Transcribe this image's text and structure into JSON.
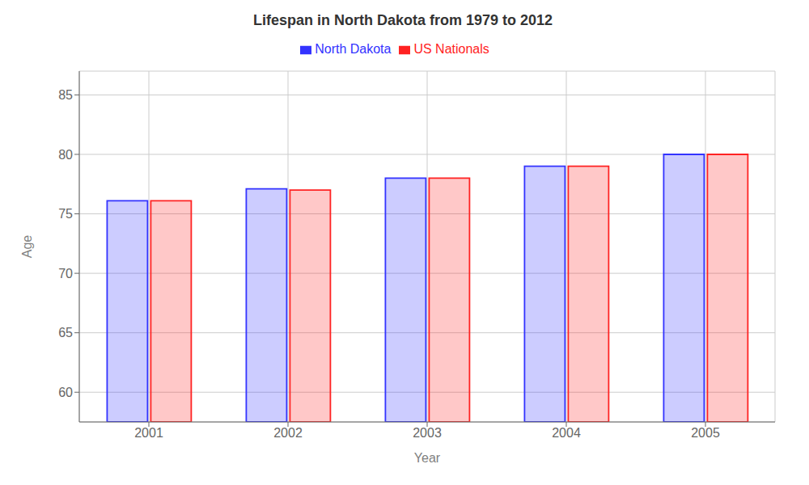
{
  "chart_data": {
    "type": "bar",
    "title": "Lifespan in North Dakota from 1979 to 2012",
    "x_label": "Year",
    "y_label": "Age",
    "categories": [
      "2001",
      "2002",
      "2003",
      "2004",
      "2005"
    ],
    "series": [
      {
        "name": "North Dakota",
        "color": "#3333ff",
        "values": [
          76.1,
          77.1,
          78.0,
          79.0,
          80.0
        ]
      },
      {
        "name": "US Nationals",
        "color": "#ff2222",
        "values": [
          76.1,
          77.0,
          78.0,
          79.0,
          80.0
        ]
      }
    ],
    "ylim": [
      57.5,
      87
    ],
    "yticks": [
      60,
      65,
      70,
      75,
      80,
      85
    ],
    "grid": true,
    "legend": "top"
  }
}
